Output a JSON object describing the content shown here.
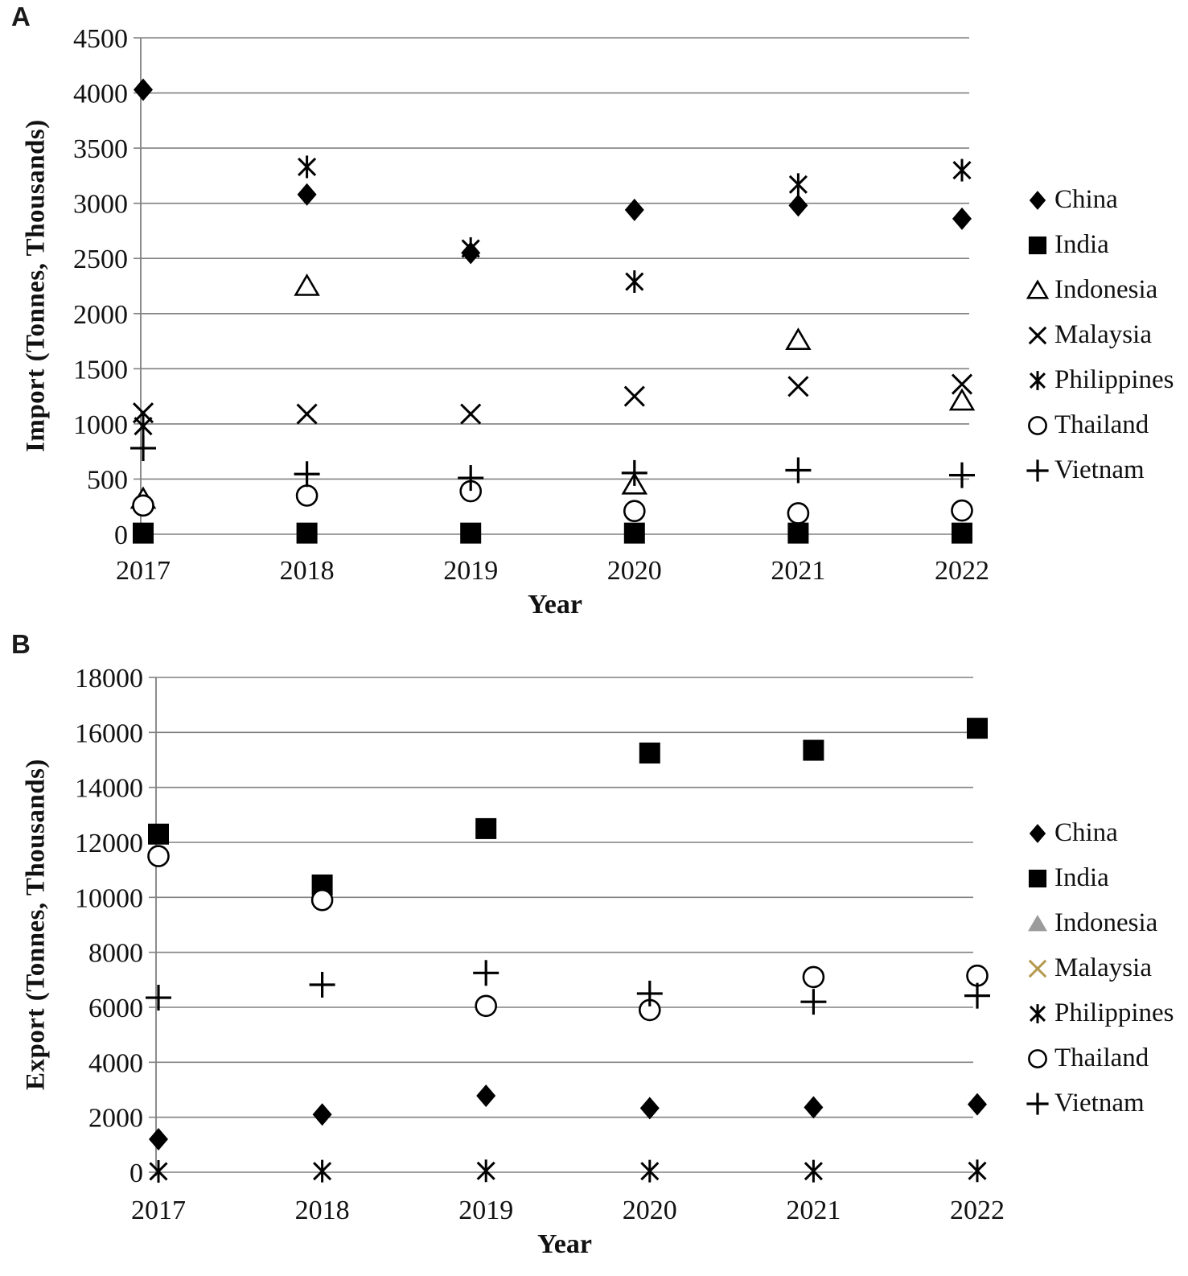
{
  "figure": {
    "background": "#ffffff",
    "grid_color": "#808080",
    "text_color": "#111111",
    "default_marker_color": "#000000",
    "indonesia_export_marker_color": "#9b9b9b",
    "malaysia_export_marker_color": "#b5994e"
  },
  "chart_data": [
    {
      "type": "scatter",
      "panel_label": "A",
      "title": "",
      "xlabel": "Year",
      "ylabel": "Import (Tonnes, Thousands)",
      "x": [
        "2017",
        "2018",
        "2019",
        "2020",
        "2021",
        "2022"
      ],
      "ylim": [
        0,
        4500
      ],
      "ytick_step": 500,
      "ytick_labels": [
        "0",
        "500",
        "1000",
        "1500",
        "2000",
        "2500",
        "3000",
        "3500",
        "4000",
        "4500"
      ],
      "grid": true,
      "legend_position": "right",
      "series": [
        {
          "name": "China",
          "marker": "filled-diamond",
          "color": "#000000",
          "values": [
            4030,
            3080,
            2550,
            2940,
            2980,
            2860
          ]
        },
        {
          "name": "India",
          "marker": "filled-square",
          "color": "#000000",
          "values": [
            10,
            10,
            10,
            10,
            10,
            10
          ]
        },
        {
          "name": "Indonesia",
          "marker": "open-triangle",
          "color": "#000000",
          "values": [
            320,
            2250,
            null,
            450,
            1760,
            1210
          ]
        },
        {
          "name": "Malaysia",
          "marker": "x-cross",
          "color": "#000000",
          "values": [
            1100,
            1090,
            1090,
            1250,
            1340,
            1360
          ]
        },
        {
          "name": "Philippines",
          "marker": "asterisk",
          "color": "#000000",
          "values": [
            980,
            3330,
            2590,
            2290,
            3170,
            3300
          ]
        },
        {
          "name": "Thailand",
          "marker": "open-circle",
          "color": "#000000",
          "values": [
            260,
            350,
            390,
            210,
            190,
            215
          ]
        },
        {
          "name": "Vietnam",
          "marker": "plus",
          "color": "#000000",
          "values": [
            780,
            545,
            510,
            555,
            580,
            535
          ]
        }
      ]
    },
    {
      "type": "scatter",
      "panel_label": "B",
      "title": "",
      "xlabel": "Year",
      "ylabel": "Export (Tonnes, Thousands)",
      "x": [
        "2017",
        "2018",
        "2019",
        "2020",
        "2021",
        "2022"
      ],
      "ylim": [
        0,
        18000
      ],
      "ytick_step": 2000,
      "ytick_labels": [
        "0",
        "2000",
        "4000",
        "6000",
        "8000",
        "10000",
        "12000",
        "14000",
        "16000",
        "18000"
      ],
      "grid": true,
      "legend_position": "right",
      "series": [
        {
          "name": "China",
          "marker": "filled-diamond",
          "color": "#000000",
          "values": [
            1200,
            2100,
            2780,
            2330,
            2360,
            2470
          ]
        },
        {
          "name": "India",
          "marker": "filled-square",
          "color": "#000000",
          "values": [
            12300,
            10450,
            12500,
            15250,
            15350,
            16150
          ]
        },
        {
          "name": "Indonesia",
          "marker": "filled-triangle",
          "color": "#9b9b9b",
          "values": [
            null,
            null,
            null,
            null,
            null,
            null
          ]
        },
        {
          "name": "Malaysia",
          "marker": "x-cross",
          "color": "#b5994e",
          "values": [
            null,
            null,
            null,
            null,
            null,
            null
          ]
        },
        {
          "name": "Philippines",
          "marker": "asterisk",
          "color": "#000000",
          "values": [
            30,
            40,
            50,
            40,
            40,
            50
          ]
        },
        {
          "name": "Thailand",
          "marker": "open-circle",
          "color": "#000000",
          "values": [
            11500,
            9900,
            6050,
            5900,
            7100,
            7150
          ]
        },
        {
          "name": "Vietnam",
          "marker": "plus",
          "color": "#000000",
          "values": [
            6350,
            6820,
            7250,
            6500,
            6200,
            6420
          ]
        }
      ]
    }
  ]
}
